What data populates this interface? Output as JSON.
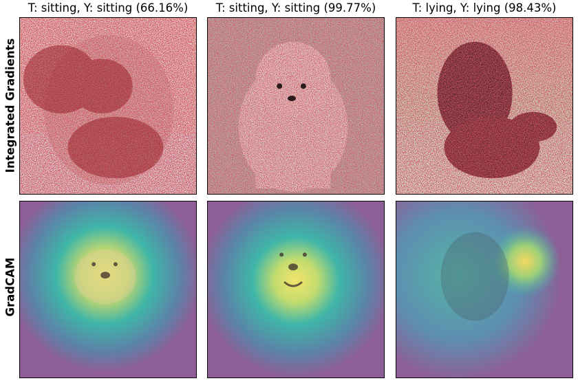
{
  "columns": [
    {
      "title": "T: sitting, Y: sitting (66.16%)"
    },
    {
      "title": "T: sitting, Y: sitting (99.77%)"
    },
    {
      "title": "T: lying, Y: lying (98.43%)"
    }
  ],
  "rows": [
    {
      "label": "Integrated Gradients",
      "style": "attribution-speckle-red"
    },
    {
      "label": "GradCAM",
      "style": "heatmap-viridis-overlay"
    }
  ],
  "panels": [
    {
      "row": 0,
      "col": 0,
      "subject": "small fluffy dog sitting"
    },
    {
      "row": 0,
      "col": 1,
      "subject": "white pomeranian sitting"
    },
    {
      "row": 0,
      "col": 2,
      "subject": "dark dog lying on plants"
    },
    {
      "row": 1,
      "col": 0,
      "subject": "small fluffy dog sitting"
    },
    {
      "row": 1,
      "col": 1,
      "subject": "white pomeranian sitting"
    },
    {
      "row": 1,
      "col": 2,
      "subject": "dark dog lying on plants"
    }
  ],
  "colors": {
    "ig_red": "#a8141e",
    "gradcam_base": "#8a5a94",
    "gradcam_mid": "#3fb6a8",
    "gradcam_hot": "#f0e05a"
  }
}
